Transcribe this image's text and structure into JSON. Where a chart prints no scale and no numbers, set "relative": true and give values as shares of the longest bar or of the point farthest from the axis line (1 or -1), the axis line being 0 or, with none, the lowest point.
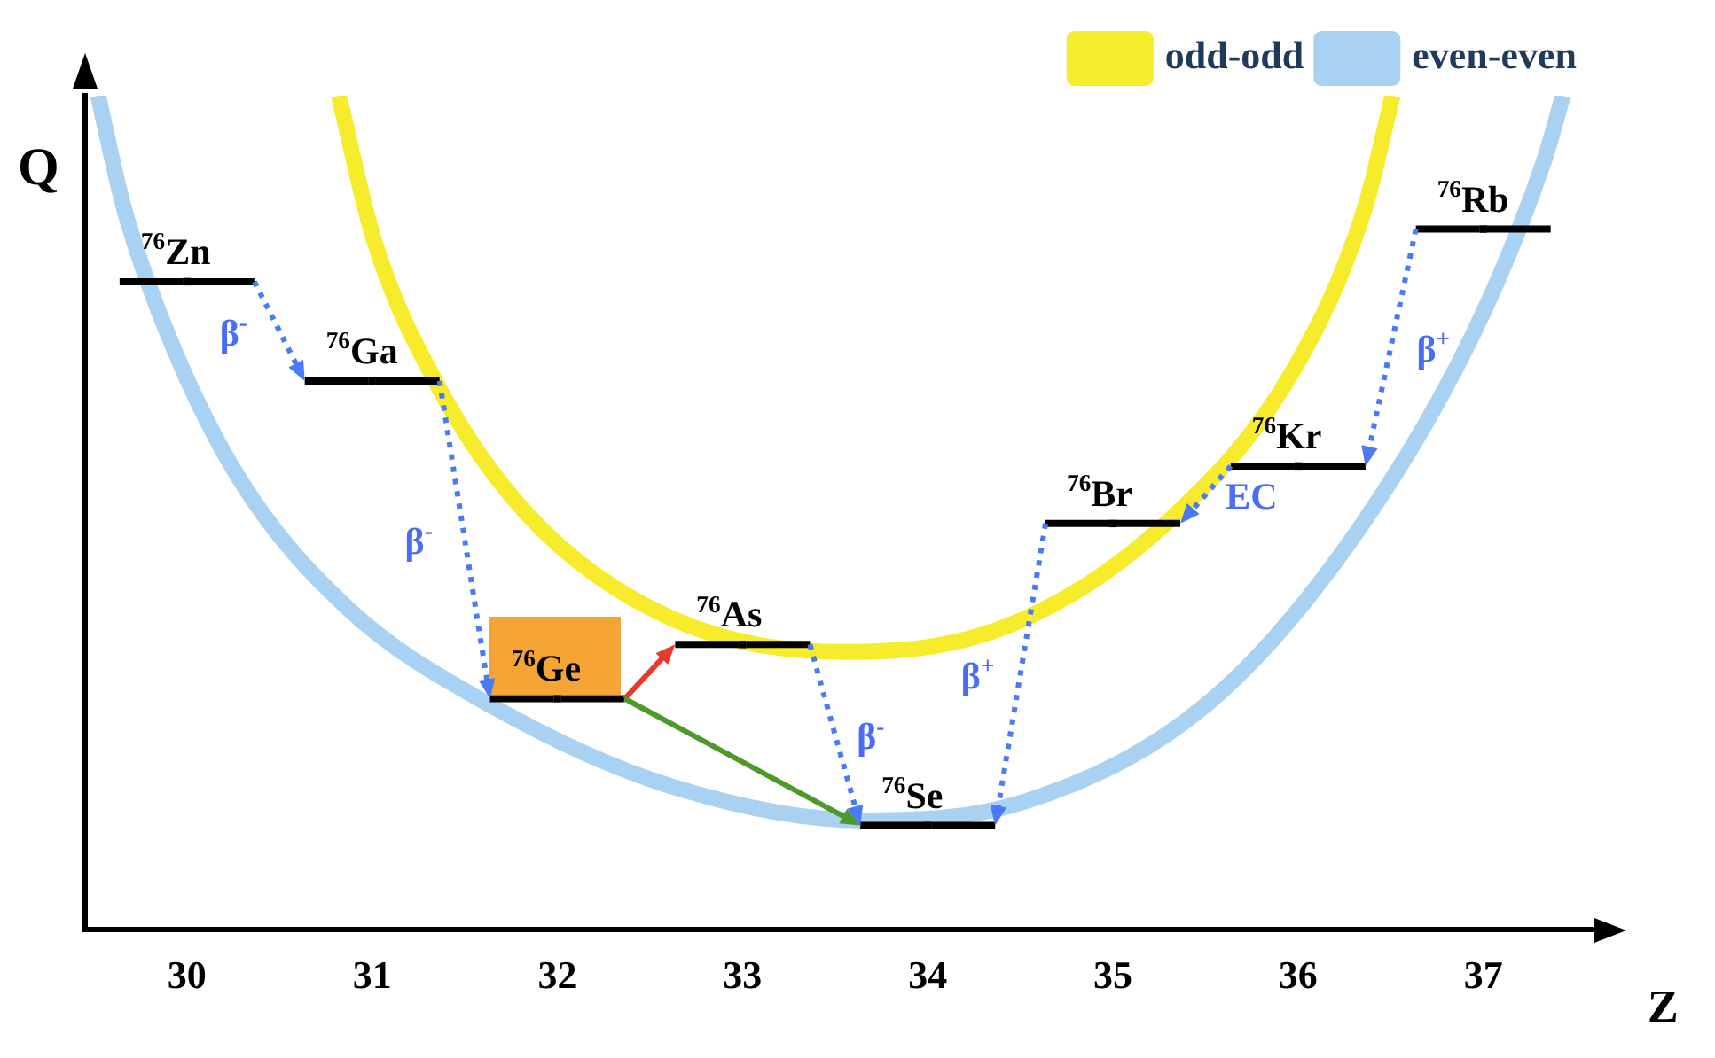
{
  "chart_data": {
    "type": "line",
    "relative": true,
    "xlim": [
      29.45,
      37.6
    ],
    "xticks": [
      30,
      31,
      32,
      33,
      34,
      35,
      36,
      37
    ],
    "ylabel": "Q",
    "xlabel": "Z",
    "legend": "top right",
    "series": [
      {
        "name": "odd-odd",
        "color": "#f7ec2b",
        "x": [
          30.82,
          31.01,
          31.35,
          31.83,
          32.6,
          33.57,
          34.44,
          35.3,
          35.98,
          36.36,
          36.51
        ],
        "values": [
          1.0,
          0.827,
          0.654,
          0.5,
          0.375,
          0.333,
          0.365,
          0.49,
          0.673,
          0.865,
          1.0
        ]
      },
      {
        "name": "even-even",
        "color": "#a9d2f2",
        "x": [
          29.52,
          29.66,
          29.9,
          30.29,
          30.87,
          31.64,
          32.6,
          33.66,
          34.53,
          35.5,
          36.27,
          36.94,
          37.33,
          37.43
        ],
        "values": [
          1.0,
          0.865,
          0.712,
          0.538,
          0.385,
          0.269,
          0.173,
          0.131,
          0.154,
          0.269,
          0.462,
          0.712,
          0.923,
          1.0
        ]
      },
      {
        "type": "scatter",
        "color": "#000000",
        "x": [
          30,
          31,
          32,
          33,
          34,
          35,
          36,
          37
        ],
        "values": [
          0.777,
          0.658,
          0.277,
          0.342,
          0.125,
          0.487,
          0.556,
          0.84
        ]
      }
    ],
    "annotations": [
      {
        "text": "$^{76}$Zn",
        "x": 30,
        "y": 0.777
      },
      {
        "text": "$^{76}$Ga",
        "x": 31,
        "y": 0.658
      },
      {
        "text": "$^{76}$Ge",
        "x": 32,
        "y": 0.277
      },
      {
        "text": "$^{76}$As",
        "x": 33,
        "y": 0.342
      },
      {
        "text": "$^{76}$Se",
        "x": 34,
        "y": 0.125
      },
      {
        "text": "$^{76}$Br",
        "x": 35,
        "y": 0.487
      },
      {
        "text": "$^{76}$Kr",
        "x": 36,
        "y": 0.556
      },
      {
        "text": "$^{76}$Rb",
        "x": 37,
        "y": 0.84
      },
      "β$^{-}$",
      "β$^{-}$",
      "β$^{-}$",
      "β$^{+}$",
      "EC",
      "β$^{+}$"
    ]
  }
}
